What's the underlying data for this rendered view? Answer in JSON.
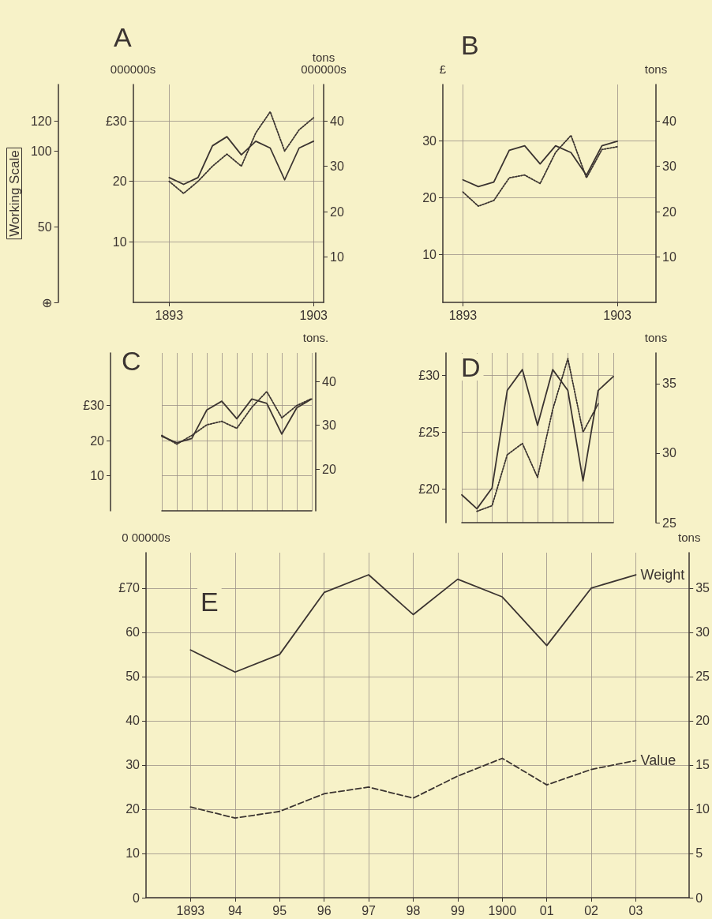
{
  "chart_data": [
    {
      "type": "line",
      "title": "A",
      "x": [
        1893,
        1894,
        1895,
        1896,
        1897,
        1898,
        1899,
        1900,
        1901,
        1902,
        1903
      ],
      "xlim": [
        1890.5,
        1903.7
      ],
      "xticks": [
        1893,
        1903
      ],
      "ylim": [
        0,
        36
      ],
      "yticks": [
        10,
        20,
        {
          "value": 30,
          "label": "£30"
        }
      ],
      "ylabel": "000000s",
      "y2lim": [
        0,
        48
      ],
      "y2ticks": [
        10,
        20,
        30,
        40
      ],
      "y2label": "tons\n000000s",
      "y3lim": [
        0,
        144
      ],
      "y3ticks": [
        {
          "value": 0,
          "label": "⊕"
        },
        50,
        100,
        120
      ],
      "y3label": "Working Scale",
      "grid": true,
      "series": [
        {
          "color": "#3b3431",
          "axis": "y2",
          "line_style": "solid",
          "values": [
            27.5,
            26,
            27.5,
            34.5,
            36.5,
            32.5,
            35.5,
            34,
            27,
            34,
            35.5
          ]
        },
        {
          "color": "#3b3431",
          "axis": "y",
          "line_style": "dotted",
          "values": [
            20,
            18,
            20,
            22.5,
            24.5,
            22.5,
            28,
            31.5,
            25,
            28.5,
            30.5
          ]
        }
      ]
    },
    {
      "type": "line",
      "title": "B",
      "x": [
        1893,
        1894,
        1895,
        1896,
        1897,
        1898,
        1899,
        1900,
        1901,
        1902,
        1903
      ],
      "xlim": [
        1891.7,
        1905.5
      ],
      "xticks": [
        1893,
        1903
      ],
      "ylim": [
        1.5,
        40
      ],
      "yticks": [
        10,
        20,
        30
      ],
      "ylabel": "£",
      "y2lim": [
        0,
        48
      ],
      "y2ticks": [
        10,
        20,
        30,
        40
      ],
      "y2label": "tons",
      "grid": true,
      "series": [
        {
          "color": "#3b3431",
          "axis": "y2",
          "line_style": "solid",
          "values": [
            27,
            25.5,
            26.5,
            33.5,
            34.5,
            30.5,
            34.5,
            33,
            28,
            34.5,
            35.5
          ]
        },
        {
          "color": "#3b3431",
          "axis": "y",
          "line_style": "dotted",
          "values": [
            21,
            18.5,
            19.5,
            23.5,
            24,
            22.5,
            28,
            31,
            23.5,
            28.5,
            29
          ]
        }
      ]
    },
    {
      "type": "line",
      "title": "C",
      "categories": [
        null,
        null,
        null,
        null,
        null,
        null,
        null,
        null,
        null,
        null,
        null
      ],
      "ylim": [
        0,
        45
      ],
      "yticks": [
        10,
        20,
        {
          "value": 30,
          "label": "£30"
        }
      ],
      "y2lim": [
        10.5,
        46.5
      ],
      "y2ticks": [
        20,
        30,
        40
      ],
      "y2label": "tons.",
      "grid": true,
      "series": [
        {
          "color": "#3b3431",
          "axis": "y2",
          "line_style": "solid",
          "values": [
            27.5,
            26,
            27,
            33.5,
            35.5,
            31.5,
            36,
            35,
            28,
            34,
            36
          ]
        },
        {
          "color": "#3b3431",
          "axis": "y",
          "line_style": "dotted",
          "values": [
            21.5,
            19,
            21.5,
            24.5,
            25.5,
            23.5,
            29.5,
            34,
            26.5,
            30,
            32
          ]
        }
      ]
    },
    {
      "type": "line",
      "title": "D",
      "categories": [
        null,
        null,
        null,
        null,
        null,
        null,
        null,
        null,
        null,
        null,
        null
      ],
      "ylim": [
        17,
        32
      ],
      "yticks": [
        {
          "value": 20,
          "label": "£20"
        },
        {
          "value": 25,
          "label": "£25"
        },
        {
          "value": 30,
          "label": "£30"
        }
      ],
      "y2lim": [
        25,
        37.2
      ],
      "y2ticks": [
        25,
        30,
        35
      ],
      "y2label": "tons",
      "grid": true,
      "series": [
        {
          "color": "#3b3431",
          "axis": "y2",
          "line_style": "solid",
          "values": [
            27,
            26,
            27.5,
            34.5,
            36,
            32,
            36,
            34.5,
            28,
            34.5,
            35.5
          ]
        },
        {
          "color": "#3b3431",
          "axis": "y",
          "line_style": "dotted",
          "values": [
            null,
            18,
            18.5,
            23,
            24,
            21,
            27,
            31.5,
            25,
            27.5,
            null
          ]
        }
      ]
    },
    {
      "type": "line",
      "title": "E",
      "x": [
        1893,
        1894,
        1895,
        1896,
        1897,
        1898,
        1899,
        1900,
        1901,
        1902,
        1903
      ],
      "xlim": [
        1892,
        1904.2
      ],
      "xticks": [
        1893,
        {
          "value": 1894,
          "label": "94"
        },
        {
          "value": 1895,
          "label": "95"
        },
        {
          "value": 1896,
          "label": "96"
        },
        {
          "value": 1897,
          "label": "97"
        },
        {
          "value": 1898,
          "label": "98"
        },
        {
          "value": 1899,
          "label": "99"
        },
        1900,
        {
          "value": 1901,
          "label": "01"
        },
        {
          "value": 1902,
          "label": "02"
        },
        {
          "value": 1903,
          "label": "03"
        }
      ],
      "ylim": [
        0,
        78
      ],
      "yticks": [
        0,
        10,
        20,
        30,
        40,
        50,
        60,
        {
          "value": 70,
          "label": "£70"
        }
      ],
      "ylabel": "0 00000s",
      "y2lim": [
        0,
        39
      ],
      "y2ticks": [
        0,
        5,
        10,
        15,
        20,
        25,
        30,
        35
      ],
      "y2label": "tons",
      "grid": true,
      "series": [
        {
          "name": "Weight",
          "color": "#3b3431",
          "axis": "y2",
          "line_style": "solid",
          "values": [
            28,
            25.5,
            27.5,
            34.5,
            36.5,
            32,
            36,
            34,
            28.5,
            35,
            36.5
          ]
        },
        {
          "name": "Value",
          "color": "#3b3431",
          "axis": "y",
          "line_style": "dashed",
          "values": [
            20.5,
            18,
            19.5,
            23.5,
            25,
            22.5,
            27.5,
            31.5,
            25.5,
            29,
            31
          ]
        }
      ]
    }
  ]
}
